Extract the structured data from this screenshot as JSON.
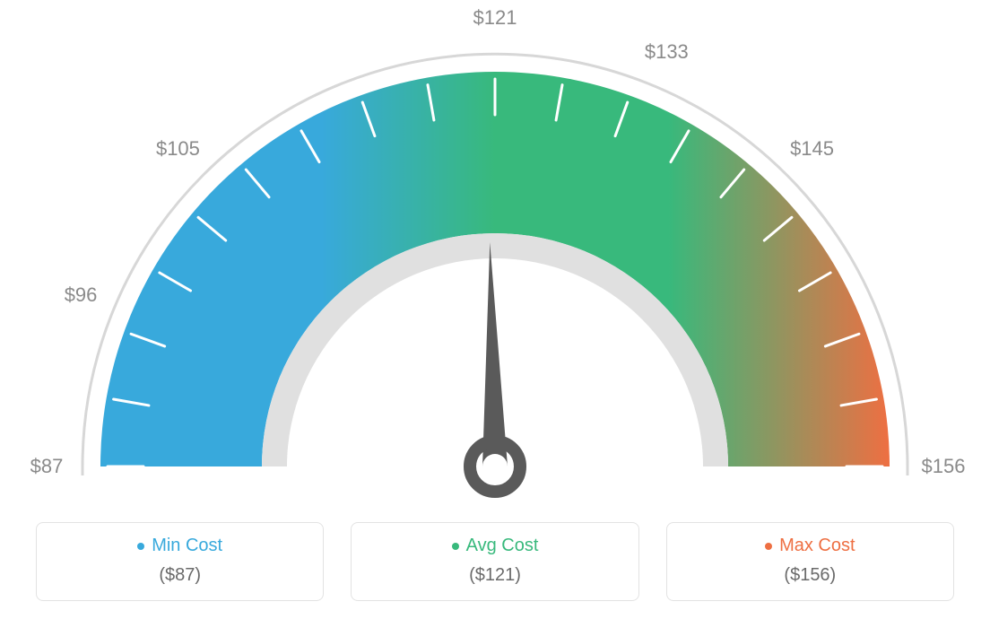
{
  "gauge": {
    "type": "gauge",
    "min_value": 87,
    "avg_value": 121,
    "max_value": 156,
    "needle_value": 121,
    "scale_labels": [
      {
        "value": "$87"
      },
      {
        "value": "$96"
      },
      {
        "value": "$105"
      },
      {
        "value": "$121"
      },
      {
        "value": "$133"
      },
      {
        "value": "$145"
      },
      {
        "value": "$156"
      }
    ],
    "arc_outer_radius": 440,
    "arc_inner_radius": 260,
    "scale_arc_radius": 460,
    "label_radius": 500,
    "tick_count": 19,
    "colors": {
      "min": "#38a9dc",
      "avg": "#38b97c",
      "max": "#ee6f42",
      "scale_arc": "#d7d7d7",
      "inner_ring": "#e0e0e0",
      "needle": "#5a5a5a",
      "tick": "#ffffff",
      "label_text": "#8a8a8a",
      "legend_border": "#e3e3e3",
      "legend_value": "#6a6a6a",
      "background": "#ffffff"
    },
    "font": {
      "scale_label_size": 22,
      "legend_label_size": 20,
      "legend_value_size": 20
    }
  },
  "legend": {
    "min": {
      "label": "Min Cost",
      "value": "($87)"
    },
    "avg": {
      "label": "Avg Cost",
      "value": "($121)"
    },
    "max": {
      "label": "Max Cost",
      "value": "($156)"
    }
  }
}
